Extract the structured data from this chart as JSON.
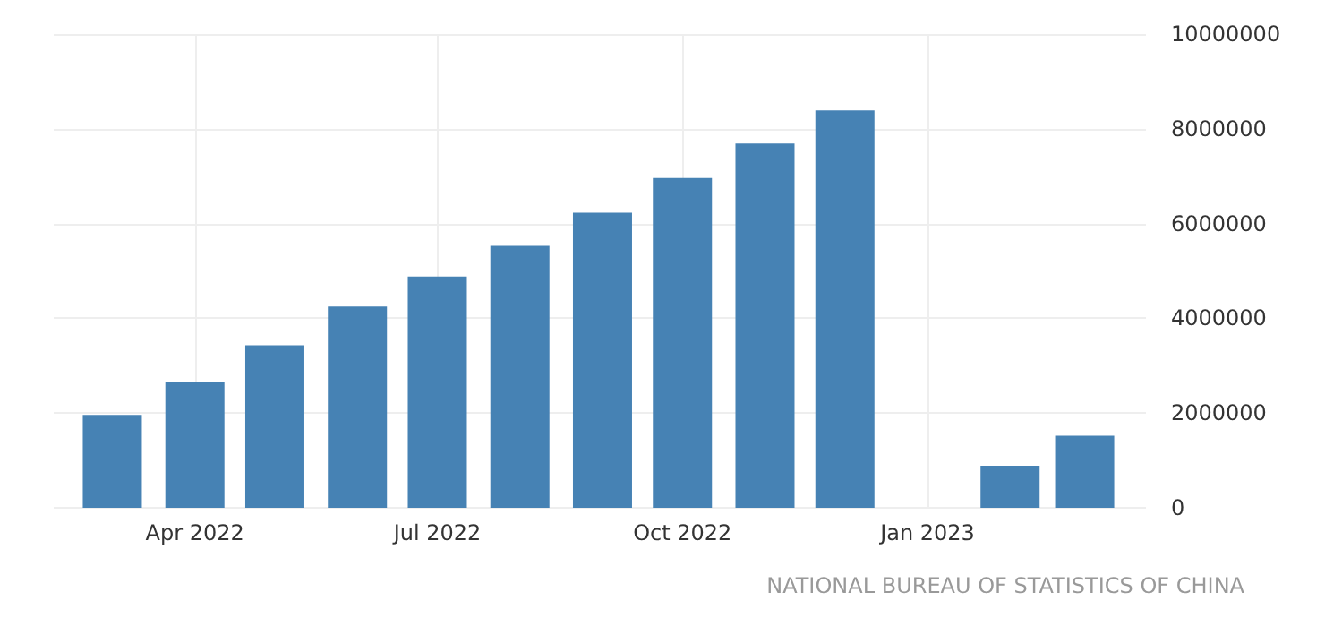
{
  "chart_data": {
    "type": "bar",
    "x": [
      "2022-03",
      "2022-04",
      "2022-05",
      "2022-06",
      "2022-07",
      "2022-08",
      "2022-09",
      "2022-10",
      "2022-11",
      "2022-12",
      "2023-02",
      "2023-03"
    ],
    "values": [
      1960000,
      2650000,
      3430000,
      4250000,
      4880000,
      5530000,
      6230000,
      6960000,
      7690000,
      8390000,
      890000,
      1520000
    ],
    "color": "#4682b4",
    "xlim": [
      "2022-02-07",
      "2023-03-24"
    ],
    "xticks": [
      {
        "value": "2022-04",
        "label": "Apr 2022"
      },
      {
        "value": "2022-07",
        "label": "Jul 2022"
      },
      {
        "value": "2022-10",
        "label": "Oct 2022"
      },
      {
        "value": "2023-01",
        "label": "Jan 2023"
      }
    ],
    "ylim": [
      0,
      10000000
    ],
    "yticks": [
      0,
      2000000,
      4000000,
      6000000,
      8000000,
      10000000
    ],
    "grid": true,
    "annotations": [
      "NATIONAL BUREAU OF STATISTICS OF CHINA"
    ]
  }
}
